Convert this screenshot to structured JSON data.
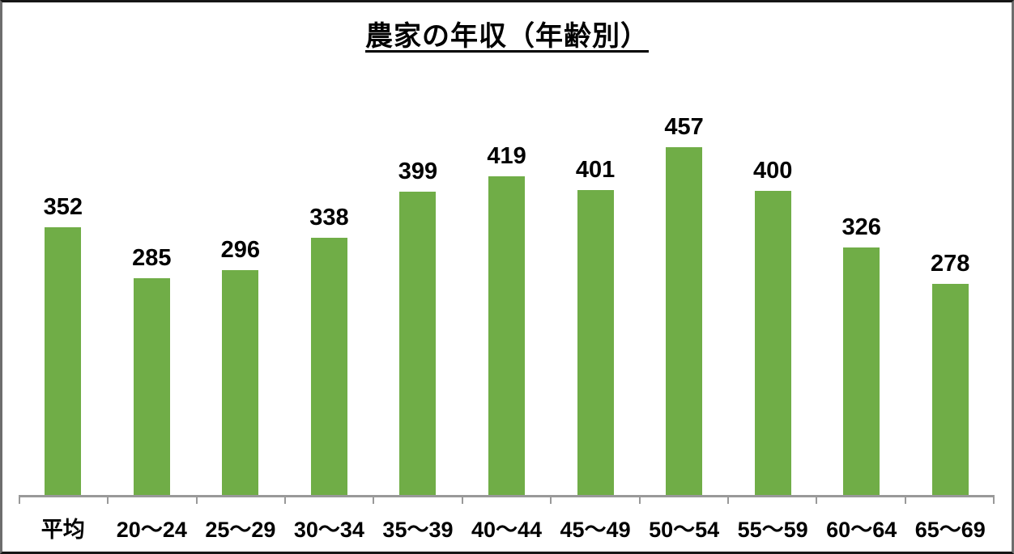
{
  "chart_data": {
    "type": "bar",
    "title": "農家の年収（年齢別）",
    "categories": [
      "平均",
      "20〜24",
      "25〜29",
      "30〜34",
      "35〜39",
      "40〜44",
      "45〜49",
      "50〜54",
      "55〜59",
      "60〜64",
      "65〜69"
    ],
    "values": [
      352,
      285,
      296,
      338,
      399,
      419,
      401,
      457,
      400,
      326,
      278
    ],
    "xlabel": "",
    "ylabel": "",
    "ylim": [
      0,
      500
    ],
    "grid": false,
    "legend_position": "none",
    "data_labels_shown": true,
    "bar_color": "#70AD47",
    "axis_color": "#999999",
    "text_color": "#000000"
  }
}
